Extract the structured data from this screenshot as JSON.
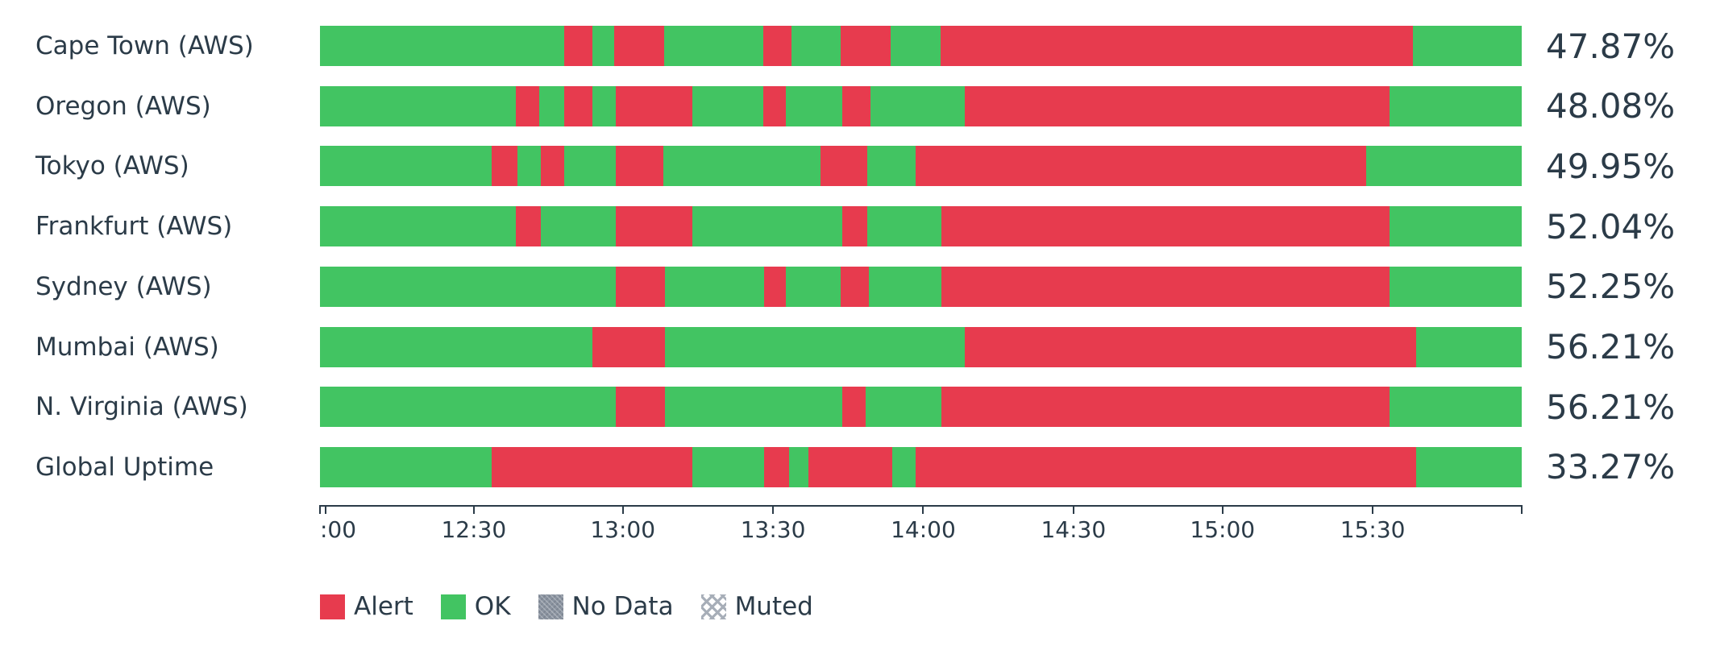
{
  "colors": {
    "alert": "#e73b4e",
    "ok": "#42c462",
    "no_data": "#8a93a0",
    "muted_hatch": "#a7aeb8",
    "text": "#2b3b48",
    "axis": "#2b3b48"
  },
  "legend": {
    "items": [
      {
        "label": "Alert",
        "type": "alert"
      },
      {
        "label": "OK",
        "type": "ok"
      },
      {
        "label": "No Data",
        "type": "nodata"
      },
      {
        "label": "Muted",
        "type": "muted"
      }
    ]
  },
  "chart_data": {
    "type": "bar",
    "subtype": "status-timeline-horizontal",
    "title": "",
    "xlabel": "",
    "ylabel": "",
    "x_axis": {
      "range_start": "12:00",
      "range_end": "16:00",
      "ticks": [
        {
          "label": "",
          "pos": 0
        },
        {
          "label": ":00",
          "pos": 0.45,
          "align": "left"
        },
        {
          "label": "12:30",
          "pos": 12.8
        },
        {
          "label": "13:00",
          "pos": 25.2
        },
        {
          "label": "13:30",
          "pos": 37.7
        },
        {
          "label": "14:00",
          "pos": 50.2
        },
        {
          "label": "14:30",
          "pos": 62.7
        },
        {
          "label": "15:00",
          "pos": 75.1
        },
        {
          "label": "15:30",
          "pos": 87.6
        },
        {
          "label": "",
          "pos": 100
        }
      ]
    },
    "rows": [
      {
        "label": "Cape Town (AWS)",
        "uptime": "47.87%",
        "segments": [
          [
            "ok",
            20.32
          ],
          [
            "alert",
            2.35
          ],
          [
            "ok",
            1.81
          ],
          [
            "alert",
            4.16
          ],
          [
            "ok",
            8.25
          ],
          [
            "alert",
            2.35
          ],
          [
            "ok",
            4.09
          ],
          [
            "alert",
            4.16
          ],
          [
            "ok",
            4.16
          ],
          [
            "alert",
            39.3
          ],
          [
            "ok",
            9.05
          ]
        ]
      },
      {
        "label": "Oregon (AWS)",
        "uptime": "48.08%",
        "segments": [
          [
            "ok",
            16.3
          ],
          [
            "alert",
            1.95
          ],
          [
            "ok",
            2.08
          ],
          [
            "alert",
            2.35
          ],
          [
            "ok",
            1.95
          ],
          [
            "alert",
            6.37
          ],
          [
            "ok",
            5.9
          ],
          [
            "alert",
            1.88
          ],
          [
            "ok",
            4.7
          ],
          [
            "alert",
            2.35
          ],
          [
            "ok",
            7.85
          ],
          [
            "alert",
            35.32
          ],
          [
            "ok",
            11.0
          ]
        ]
      },
      {
        "label": "Tokyo (AWS)",
        "uptime": "49.95%",
        "segments": [
          [
            "ok",
            14.29
          ],
          [
            "alert",
            2.15
          ],
          [
            "ok",
            1.95
          ],
          [
            "alert",
            1.95
          ],
          [
            "ok",
            4.29
          ],
          [
            "alert",
            3.96
          ],
          [
            "ok",
            13.08
          ],
          [
            "alert",
            3.89
          ],
          [
            "ok",
            4.02
          ],
          [
            "alert",
            37.48
          ],
          [
            "ok",
            12.94
          ]
        ]
      },
      {
        "label": "Frankfurt (AWS)",
        "uptime": "52.04%",
        "segments": [
          [
            "ok",
            16.3
          ],
          [
            "alert",
            2.08
          ],
          [
            "ok",
            6.24
          ],
          [
            "alert",
            6.37
          ],
          [
            "ok",
            12.47
          ],
          [
            "alert",
            2.08
          ],
          [
            "ok",
            6.17
          ],
          [
            "alert",
            37.29
          ],
          [
            "ok",
            11.0
          ]
        ]
      },
      {
        "label": "Sydney (AWS)",
        "uptime": "52.25%",
        "segments": [
          [
            "ok",
            24.61
          ],
          [
            "alert",
            4.09
          ],
          [
            "ok",
            8.25
          ],
          [
            "alert",
            1.81
          ],
          [
            "ok",
            4.56
          ],
          [
            "alert",
            2.35
          ],
          [
            "ok",
            6.04
          ],
          [
            "alert",
            37.29
          ],
          [
            "ok",
            11.0
          ]
        ]
      },
      {
        "label": "Mumbai (AWS)",
        "uptime": "56.21%",
        "segments": [
          [
            "ok",
            22.67
          ],
          [
            "alert",
            6.04
          ],
          [
            "ok",
            24.95
          ],
          [
            "alert",
            37.55
          ],
          [
            "ok",
            8.79
          ]
        ]
      },
      {
        "label": "N. Virginia (AWS)",
        "uptime": "56.21%",
        "segments": [
          [
            "ok",
            24.61
          ],
          [
            "alert",
            4.09
          ],
          [
            "ok",
            14.76
          ],
          [
            "alert",
            1.95
          ],
          [
            "ok",
            6.3
          ],
          [
            "alert",
            37.29
          ],
          [
            "ok",
            11.0
          ]
        ]
      },
      {
        "label": "Global Uptime",
        "uptime": "33.27%",
        "segments": [
          [
            "ok",
            14.29
          ],
          [
            "alert",
            16.7
          ],
          [
            "ok",
            5.97
          ],
          [
            "alert",
            2.08
          ],
          [
            "ok",
            1.61
          ],
          [
            "alert",
            6.98
          ],
          [
            "ok",
            1.95
          ],
          [
            "alert",
            41.63
          ],
          [
            "ok",
            8.79
          ]
        ]
      }
    ]
  }
}
